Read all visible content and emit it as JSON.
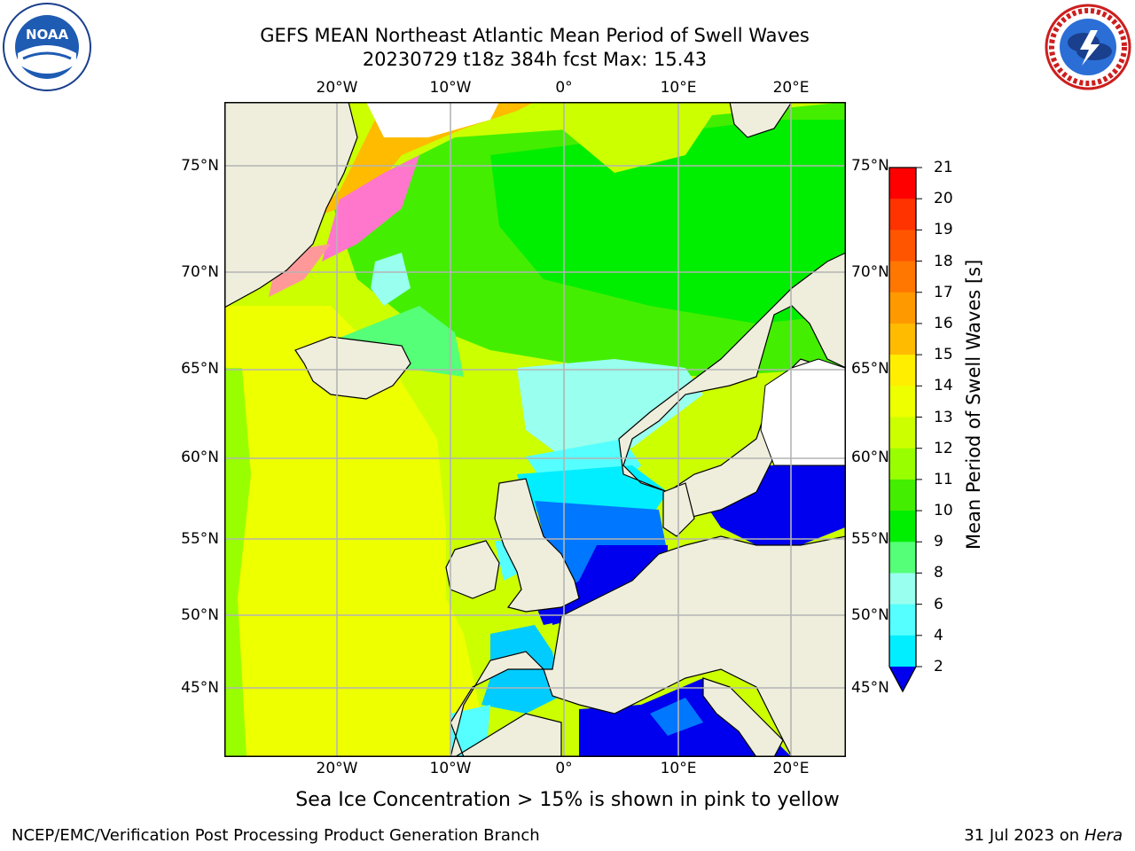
{
  "header": {
    "title_line1": "GEFS MEAN Northeast Atlantic Mean Period of Swell Waves",
    "title_line2": "20230729 t18z 384h fcst   Max: 15.43"
  },
  "logos": {
    "left": {
      "text": "NOAA",
      "icon": "noaa-logo-icon"
    },
    "right": {
      "text": "NATIONAL WEATHER SERVICE",
      "icon": "nws-logo-icon"
    }
  },
  "map": {
    "lon_labels": [
      "20°W",
      "10°W",
      "0°",
      "10°E",
      "20°E"
    ],
    "lat_labels": [
      "75°N",
      "70°N",
      "65°N",
      "60°N",
      "55°N",
      "50°N",
      "45°N"
    ],
    "colors": {
      "land": "#efeedc",
      "grid": "#b4b4b4",
      "coast": "#000000"
    }
  },
  "colorbar": {
    "label": "Mean Period of Swell Waves [s]",
    "ticks": [
      "21",
      "20",
      "19",
      "18",
      "17",
      "16",
      "15",
      "14",
      "13",
      "12",
      "11",
      "10",
      "9",
      "8",
      "6",
      "4",
      "2"
    ],
    "colors": [
      "#ff0000",
      "#ff3300",
      "#ff5500",
      "#ff7700",
      "#ff9900",
      "#ffbb00",
      "#ffee00",
      "#eeff00",
      "#ccff00",
      "#99ff00",
      "#44ee00",
      "#00ee00",
      "#55ff77",
      "#99ffee",
      "#55ffff",
      "#00eeff",
      "#00ccff",
      "#0077ff"
    ],
    "under_color": "#0000ee"
  },
  "caption": "Sea Ice Concentration > 15% is shown in pink to yellow",
  "footer": {
    "left": "NCEP/EMC/Verification Post Processing Product Generation Branch",
    "right_prefix": "31 Jul 2023 on ",
    "right_host": "Hera"
  }
}
